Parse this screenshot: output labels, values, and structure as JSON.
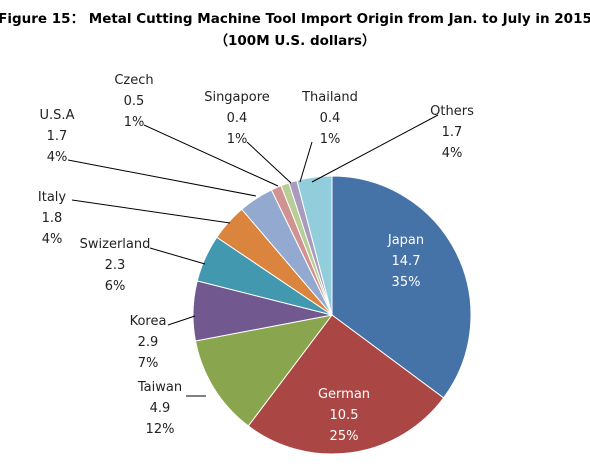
{
  "chart_data": {
    "type": "pie",
    "title": "Figure 15：  Metal Cutting Machine Tool Import Origin from Jan. to July in 2015",
    "subtitle": "（100M U.S. dollars）",
    "slices": [
      {
        "name": "Japan",
        "value": "14.7",
        "percent": "35%",
        "color": "#4572A7"
      },
      {
        "name": "German",
        "value": "10.5",
        "percent": "25%",
        "color": "#AA4643"
      },
      {
        "name": "Taiwan",
        "value": "4.9",
        "percent": "12%",
        "color": "#89A54E"
      },
      {
        "name": "Korea",
        "value": "2.9",
        "percent": "7%",
        "color": "#71588F"
      },
      {
        "name": "Swizerland",
        "value": "2.3",
        "percent": "6%",
        "color": "#4198AF"
      },
      {
        "name": "Italy",
        "value": "1.8",
        "percent": "4%",
        "color": "#DB843D"
      },
      {
        "name": "U.S.A",
        "value": "1.7",
        "percent": "4%",
        "color": "#93A9CF"
      },
      {
        "name": "Czech",
        "value": "0.5",
        "percent": "1%",
        "color": "#D19392"
      },
      {
        "name": "Singapore",
        "value": "0.4",
        "percent": "1%",
        "color": "#B9CD96"
      },
      {
        "name": "Thailand",
        "value": "0.4",
        "percent": "1%",
        "color": "#A99BBD"
      },
      {
        "name": "Others",
        "value": "1.7",
        "percent": "4%",
        "color": "#92CDDC"
      }
    ]
  }
}
